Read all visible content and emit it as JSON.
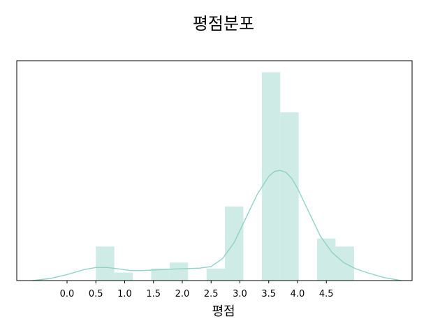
{
  "chart_data": {
    "type": "bar",
    "title": "평점분포",
    "xlabel": "평점",
    "ylabel": "",
    "x_ticks": [
      "0.0",
      "0.5",
      "1.0",
      "1.5",
      "2.0",
      "2.5",
      "3.0",
      "3.5",
      "4.0",
      "4.5"
    ],
    "xlim": [
      -0.6,
      6.0
    ],
    "ylim": [
      0,
      1.0
    ],
    "bin_width": 0.32,
    "bins": [
      {
        "start": 0.5,
        "height": 0.17
      },
      {
        "start": 0.82,
        "height": 0.04
      },
      {
        "start": 1.14,
        "height": 0.0
      },
      {
        "start": 1.46,
        "height": 0.06
      },
      {
        "start": 1.78,
        "height": 0.09
      },
      {
        "start": 2.1,
        "height": 0.0
      },
      {
        "start": 2.42,
        "height": 0.06
      },
      {
        "start": 2.74,
        "height": 0.37
      },
      {
        "start": 3.06,
        "height": 0.0
      },
      {
        "start": 3.38,
        "height": 1.04
      },
      {
        "start": 3.7,
        "height": 0.84
      },
      {
        "start": 4.02,
        "height": 0.0
      },
      {
        "start": 4.34,
        "height": 0.21
      },
      {
        "start": 4.66,
        "height": 0.17
      }
    ],
    "kde": {
      "x": [
        -0.6,
        -0.3,
        0.0,
        0.3,
        0.5,
        0.7,
        0.9,
        1.1,
        1.3,
        1.5,
        1.7,
        1.9,
        2.1,
        2.3,
        2.5,
        2.7,
        2.9,
        3.1,
        3.3,
        3.5,
        3.6,
        3.7,
        3.8,
        3.9,
        4.0,
        4.2,
        4.4,
        4.6,
        4.8,
        5.0,
        5.2,
        5.5,
        5.8
      ],
      "y": [
        0.0,
        0.01,
        0.03,
        0.055,
        0.065,
        0.065,
        0.058,
        0.05,
        0.05,
        0.053,
        0.055,
        0.058,
        0.06,
        0.062,
        0.07,
        0.11,
        0.19,
        0.31,
        0.43,
        0.52,
        0.545,
        0.55,
        0.54,
        0.51,
        0.46,
        0.34,
        0.22,
        0.14,
        0.09,
        0.06,
        0.04,
        0.015,
        0.0
      ]
    },
    "bar_color": "#cfebe5",
    "line_color": "#8fd4c3",
    "grid": false,
    "y_axis_visible": false
  }
}
